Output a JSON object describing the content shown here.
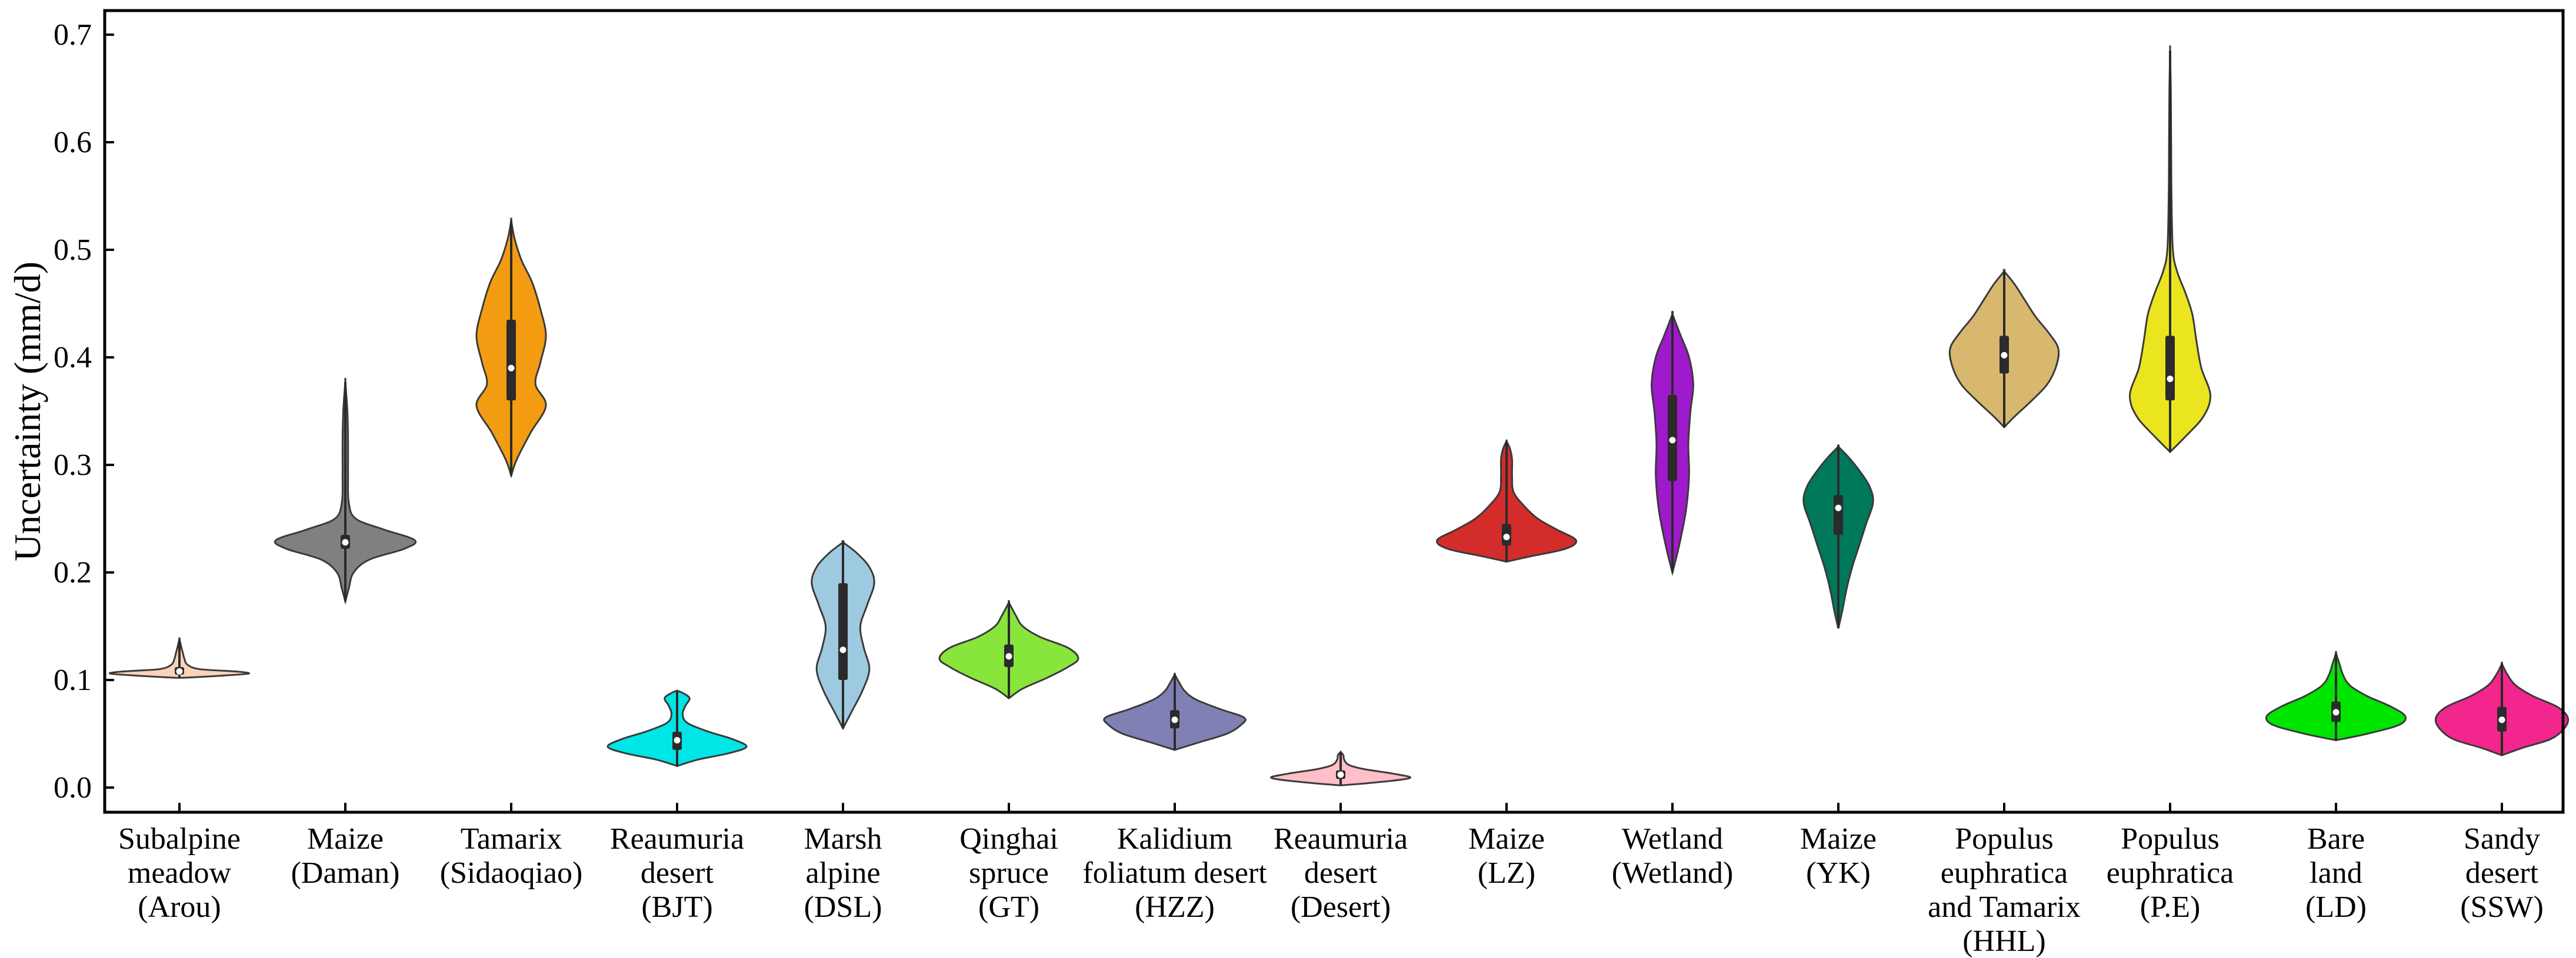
{
  "chart_data": {
    "type": "violin",
    "title": "",
    "xlabel": "",
    "ylabel": "Uncertainty (mm/d)",
    "ylim": [
      -0.02,
      0.72
    ],
    "yticks": [
      "0.0",
      "0.1",
      "0.2",
      "0.3",
      "0.4",
      "0.5",
      "0.6",
      "0.7"
    ],
    "grid": false,
    "series": [
      {
        "name": "Subalpine meadow (Arou)",
        "label_lines": [
          "Subalpine",
          "meadow",
          "(Arou)"
        ],
        "color": "#FBD3B9",
        "median": 0.108,
        "q1": 0.105,
        "q3": 0.112,
        "min": 0.102,
        "max": 0.138,
        "density": [
          [
            0.102,
            0.05
          ],
          [
            0.104,
            0.6
          ],
          [
            0.106,
            1.0
          ],
          [
            0.108,
            0.8
          ],
          [
            0.11,
            0.3
          ],
          [
            0.114,
            0.12
          ],
          [
            0.12,
            0.07
          ],
          [
            0.125,
            0.05
          ],
          [
            0.13,
            0.03
          ],
          [
            0.138,
            0.0
          ]
        ]
      },
      {
        "name": "Maize (Daman)",
        "label_lines": [
          "Maize",
          "(Daman)"
        ],
        "color": "#808080",
        "median": 0.228,
        "q1": 0.222,
        "q3": 0.235,
        "min": 0.173,
        "max": 0.377,
        "density": [
          [
            0.173,
            0.0
          ],
          [
            0.185,
            0.05
          ],
          [
            0.2,
            0.12
          ],
          [
            0.212,
            0.35
          ],
          [
            0.222,
            0.85
          ],
          [
            0.23,
            1.0
          ],
          [
            0.24,
            0.55
          ],
          [
            0.25,
            0.15
          ],
          [
            0.265,
            0.05
          ],
          [
            0.29,
            0.04
          ],
          [
            0.32,
            0.04
          ],
          [
            0.35,
            0.03
          ],
          [
            0.377,
            0.0
          ]
        ]
      },
      {
        "name": "Tamarix (Sidaoqiao)",
        "label_lines": [
          "Tamarix",
          "(Sidaoqiao)"
        ],
        "color": "#F39C12",
        "median": 0.39,
        "q1": 0.36,
        "q3": 0.435,
        "min": 0.29,
        "max": 0.527,
        "density": [
          [
            0.29,
            0.0
          ],
          [
            0.305,
            0.08
          ],
          [
            0.33,
            0.28
          ],
          [
            0.355,
            0.5
          ],
          [
            0.375,
            0.35
          ],
          [
            0.395,
            0.42
          ],
          [
            0.42,
            0.5
          ],
          [
            0.445,
            0.42
          ],
          [
            0.47,
            0.3
          ],
          [
            0.49,
            0.15
          ],
          [
            0.51,
            0.05
          ],
          [
            0.527,
            0.0
          ]
        ]
      },
      {
        "name": "Reaumuria desert (BJT)",
        "label_lines": [
          "Reaumuria",
          "desert",
          "(BJT)"
        ],
        "color": "#00E5E5",
        "median": 0.044,
        "q1": 0.035,
        "q3": 0.052,
        "min": 0.02,
        "max": 0.09,
        "density": [
          [
            0.02,
            0.0
          ],
          [
            0.026,
            0.3
          ],
          [
            0.032,
            0.75
          ],
          [
            0.038,
            1.0
          ],
          [
            0.045,
            0.8
          ],
          [
            0.052,
            0.45
          ],
          [
            0.06,
            0.15
          ],
          [
            0.068,
            0.08
          ],
          [
            0.076,
            0.12
          ],
          [
            0.083,
            0.18
          ],
          [
            0.088,
            0.08
          ],
          [
            0.09,
            0.0
          ]
        ]
      },
      {
        "name": "Marsh alpine (DSL)",
        "label_lines": [
          "Marsh",
          "alpine",
          "(DSL)"
        ],
        "color": "#9ECAE1",
        "median": 0.128,
        "q1": 0.1,
        "q3": 0.19,
        "min": 0.055,
        "max": 0.228,
        "density": [
          [
            0.055,
            0.0
          ],
          [
            0.07,
            0.12
          ],
          [
            0.09,
            0.28
          ],
          [
            0.11,
            0.38
          ],
          [
            0.13,
            0.3
          ],
          [
            0.15,
            0.25
          ],
          [
            0.17,
            0.35
          ],
          [
            0.19,
            0.45
          ],
          [
            0.205,
            0.38
          ],
          [
            0.218,
            0.2
          ],
          [
            0.228,
            0.0
          ]
        ]
      },
      {
        "name": "Qinghai spruce (GT)",
        "label_lines": [
          "Qinghai",
          "spruce",
          "(GT)"
        ],
        "color": "#88E53C",
        "median": 0.122,
        "q1": 0.112,
        "q3": 0.133,
        "min": 0.083,
        "max": 0.172,
        "density": [
          [
            0.083,
            0.0
          ],
          [
            0.092,
            0.2
          ],
          [
            0.102,
            0.55
          ],
          [
            0.112,
            0.85
          ],
          [
            0.12,
            1.0
          ],
          [
            0.13,
            0.85
          ],
          [
            0.14,
            0.45
          ],
          [
            0.15,
            0.2
          ],
          [
            0.16,
            0.1
          ],
          [
            0.172,
            0.0
          ]
        ]
      },
      {
        "name": "Kalidium foliatum desert (HZZ)",
        "label_lines": [
          "Kalidium",
          "foliatum desert",
          "(HZZ)"
        ],
        "color": "#8080B5",
        "median": 0.063,
        "q1": 0.055,
        "q3": 0.072,
        "min": 0.035,
        "max": 0.105,
        "density": [
          [
            0.035,
            0.0
          ],
          [
            0.042,
            0.35
          ],
          [
            0.05,
            0.75
          ],
          [
            0.058,
            0.95
          ],
          [
            0.065,
            1.0
          ],
          [
            0.073,
            0.65
          ],
          [
            0.082,
            0.3
          ],
          [
            0.09,
            0.14
          ],
          [
            0.097,
            0.07
          ],
          [
            0.105,
            0.0
          ]
        ]
      },
      {
        "name": "Reaumuria desert (Desert)",
        "label_lines": [
          "Reaumuria",
          "desert",
          "(Desert)"
        ],
        "color": "#FFBFC8",
        "median": 0.012,
        "q1": 0.008,
        "q3": 0.016,
        "min": 0.002,
        "max": 0.033,
        "density": [
          [
            0.002,
            0.0
          ],
          [
            0.005,
            0.55
          ],
          [
            0.009,
            1.0
          ],
          [
            0.013,
            0.75
          ],
          [
            0.017,
            0.35
          ],
          [
            0.021,
            0.12
          ],
          [
            0.026,
            0.05
          ],
          [
            0.03,
            0.04
          ],
          [
            0.033,
            0.0
          ]
        ]
      },
      {
        "name": "Maize (LZ)",
        "label_lines": [
          "Maize",
          "(LZ)"
        ],
        "color": "#D42B2B",
        "median": 0.233,
        "q1": 0.225,
        "q3": 0.245,
        "min": 0.21,
        "max": 0.322,
        "density": [
          [
            0.21,
            0.0
          ],
          [
            0.215,
            0.35
          ],
          [
            0.222,
            0.85
          ],
          [
            0.23,
            1.0
          ],
          [
            0.24,
            0.72
          ],
          [
            0.25,
            0.45
          ],
          [
            0.262,
            0.25
          ],
          [
            0.275,
            0.1
          ],
          [
            0.29,
            0.08
          ],
          [
            0.305,
            0.08
          ],
          [
            0.315,
            0.05
          ],
          [
            0.322,
            0.0
          ]
        ]
      },
      {
        "name": "Wetland (Wetland)",
        "label_lines": [
          "Wetland",
          "(Wetland)"
        ],
        "color": "#9F1ACC",
        "median": 0.323,
        "q1": 0.285,
        "q3": 0.365,
        "min": 0.2,
        "max": 0.44,
        "density": [
          [
            0.2,
            0.0
          ],
          [
            0.215,
            0.06
          ],
          [
            0.235,
            0.13
          ],
          [
            0.26,
            0.2
          ],
          [
            0.29,
            0.24
          ],
          [
            0.32,
            0.23
          ],
          [
            0.35,
            0.26
          ],
          [
            0.375,
            0.3
          ],
          [
            0.4,
            0.24
          ],
          [
            0.42,
            0.12
          ],
          [
            0.44,
            0.0
          ]
        ]
      },
      {
        "name": "Maize (YK)",
        "label_lines": [
          "Maize",
          "(YK)"
        ],
        "color": "#00785A",
        "median": 0.26,
        "q1": 0.235,
        "q3": 0.272,
        "min": 0.148,
        "max": 0.317,
        "density": [
          [
            0.148,
            0.0
          ],
          [
            0.165,
            0.06
          ],
          [
            0.185,
            0.12
          ],
          [
            0.205,
            0.2
          ],
          [
            0.225,
            0.3
          ],
          [
            0.245,
            0.4
          ],
          [
            0.265,
            0.5
          ],
          [
            0.28,
            0.45
          ],
          [
            0.295,
            0.3
          ],
          [
            0.307,
            0.15
          ],
          [
            0.317,
            0.0
          ]
        ]
      },
      {
        "name": "Populus euphratica and Tamarix (HHL)",
        "label_lines": [
          "Populus",
          "euphratica",
          "and Tamarix",
          "(HHL)"
        ],
        "color": "#D8B76F",
        "median": 0.402,
        "q1": 0.385,
        "q3": 0.42,
        "min": 0.335,
        "max": 0.48,
        "density": [
          [
            0.335,
            0.0
          ],
          [
            0.345,
            0.15
          ],
          [
            0.36,
            0.4
          ],
          [
            0.375,
            0.62
          ],
          [
            0.392,
            0.75
          ],
          [
            0.408,
            0.78
          ],
          [
            0.422,
            0.65
          ],
          [
            0.438,
            0.45
          ],
          [
            0.455,
            0.28
          ],
          [
            0.468,
            0.15
          ],
          [
            0.48,
            0.0
          ]
        ]
      },
      {
        "name": "Populus euphratica (P.E)",
        "label_lines": [
          "Populus",
          "euphratica",
          "(P.E)"
        ],
        "color": "#EBE51F",
        "median": 0.38,
        "q1": 0.36,
        "q3": 0.42,
        "min": 0.312,
        "max": 0.685,
        "density": [
          [
            0.312,
            0.0
          ],
          [
            0.325,
            0.2
          ],
          [
            0.345,
            0.48
          ],
          [
            0.365,
            0.58
          ],
          [
            0.39,
            0.45
          ],
          [
            0.415,
            0.38
          ],
          [
            0.44,
            0.32
          ],
          [
            0.46,
            0.22
          ],
          [
            0.48,
            0.1
          ],
          [
            0.5,
            0.04
          ],
          [
            0.55,
            0.02
          ],
          [
            0.6,
            0.015
          ],
          [
            0.65,
            0.01
          ],
          [
            0.685,
            0.0
          ]
        ]
      },
      {
        "name": "Bare land (LD)",
        "label_lines": [
          "Bare",
          "land",
          "(LD)"
        ],
        "color": "#00E500",
        "median": 0.07,
        "q1": 0.061,
        "q3": 0.08,
        "min": 0.044,
        "max": 0.125,
        "density": [
          [
            0.044,
            0.0
          ],
          [
            0.05,
            0.45
          ],
          [
            0.058,
            0.9
          ],
          [
            0.066,
            1.0
          ],
          [
            0.075,
            0.8
          ],
          [
            0.085,
            0.45
          ],
          [
            0.095,
            0.2
          ],
          [
            0.105,
            0.1
          ],
          [
            0.115,
            0.05
          ],
          [
            0.125,
            0.0
          ]
        ]
      },
      {
        "name": "Sandy desert (SSW)",
        "label_lines": [
          "Sandy",
          "desert",
          "(SSW)"
        ],
        "color": "#F2268C",
        "median": 0.063,
        "q1": 0.052,
        "q3": 0.075,
        "min": 0.03,
        "max": 0.115,
        "density": [
          [
            0.03,
            0.0
          ],
          [
            0.037,
            0.3
          ],
          [
            0.045,
            0.7
          ],
          [
            0.055,
            0.9
          ],
          [
            0.065,
            0.95
          ],
          [
            0.075,
            0.8
          ],
          [
            0.085,
            0.45
          ],
          [
            0.095,
            0.2
          ],
          [
            0.105,
            0.08
          ],
          [
            0.115,
            0.0
          ]
        ]
      }
    ]
  }
}
